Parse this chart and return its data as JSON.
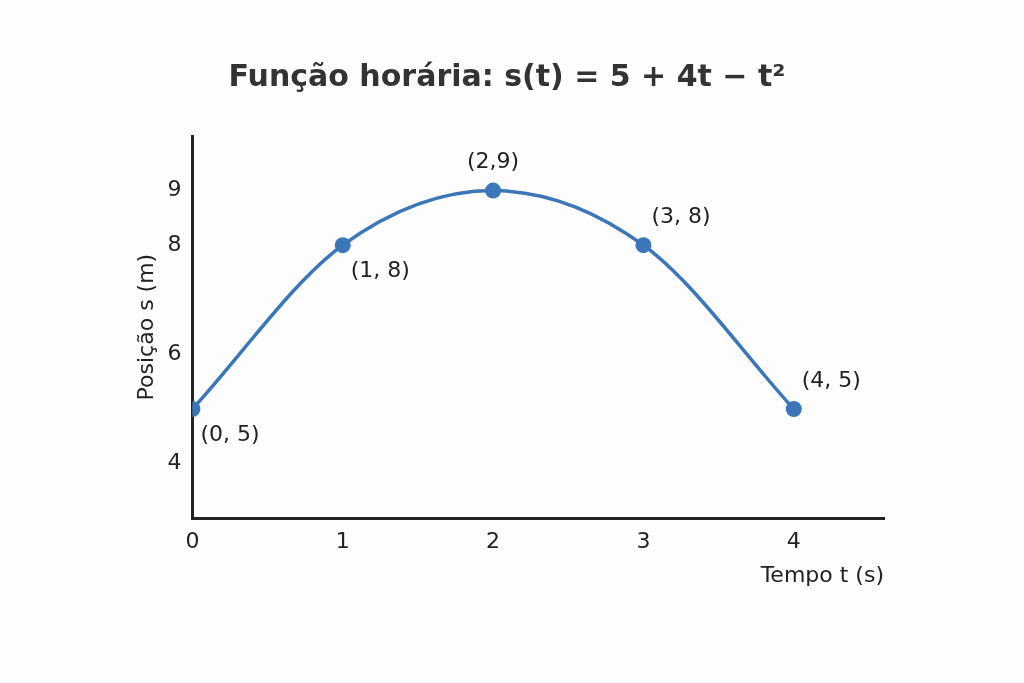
{
  "chart_data": {
    "type": "line",
    "title": "Função horária: s(t) = 5 + 4t − t²",
    "xlabel": "Tempo t (s)",
    "ylabel": "Posição s (m)",
    "x": [
      0,
      1,
      2,
      3,
      4
    ],
    "series": [
      {
        "color": "#3a76b8",
        "values": [
          5,
          8,
          9,
          8,
          5
        ]
      }
    ],
    "xlim": [
      0,
      4.6
    ],
    "xticks": [
      0,
      1,
      2,
      3,
      4
    ],
    "ylim": [
      3,
      10
    ],
    "yticks": [
      4,
      6,
      8,
      9
    ],
    "marker": "circle",
    "line_style": "solid",
    "grid": false,
    "legend": false,
    "annotations": [
      {
        "text": "(0, 5)",
        "x": 0,
        "y": 5
      },
      {
        "text": "(1, 8)",
        "x": 1,
        "y": 8
      },
      {
        "text": "(2,9)",
        "x": 2,
        "y": 9
      },
      {
        "text": "(3, 8)",
        "x": 3,
        "y": 8
      },
      {
        "text": "(4, 5)",
        "x": 4,
        "y": 5
      }
    ]
  }
}
